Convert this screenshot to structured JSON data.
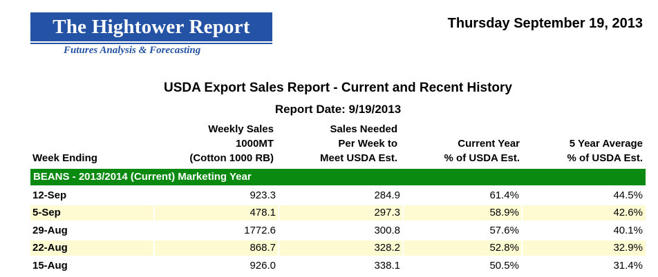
{
  "logo": {
    "title": "The Hightower Report",
    "subtitle": "Futures Analysis & Forecasting"
  },
  "date": "Thursday September 19, 2013",
  "report": {
    "title": "USDA Export Sales Report - Current and Recent History",
    "report_date": "Report Date: 9/19/2013"
  },
  "headers": {
    "week_ending": "Week Ending",
    "weekly_sales": [
      "Weekly Sales",
      "1000MT",
      "(Cotton 1000 RB)"
    ],
    "sales_needed": [
      "Sales Needed",
      "Per Week to",
      "Meet USDA Est."
    ],
    "current_year": [
      "Current Year",
      "% of USDA Est."
    ],
    "five_year": [
      "5 Year Average",
      "% of USDA Est."
    ]
  },
  "section": "BEANS - 2013/2014 (Current) Marketing Year",
  "rows": [
    {
      "week": "12-Sep",
      "weekly_sales": "923.3",
      "sales_needed": "284.9",
      "current_pct": "61.4%",
      "avg_pct": "44.5%"
    },
    {
      "week": "5-Sep",
      "weekly_sales": "478.1",
      "sales_needed": "297.3",
      "current_pct": "58.9%",
      "avg_pct": "42.6%"
    },
    {
      "week": "29-Aug",
      "weekly_sales": "1772.6",
      "sales_needed": "300.8",
      "current_pct": "57.6%",
      "avg_pct": "40.1%"
    },
    {
      "week": "22-Aug",
      "weekly_sales": "868.7",
      "sales_needed": "328.2",
      "current_pct": "52.8%",
      "avg_pct": "32.9%"
    },
    {
      "week": "15-Aug",
      "weekly_sales": "926.0",
      "sales_needed": "338.1",
      "current_pct": "50.5%",
      "avg_pct": "31.4%"
    }
  ],
  "colors": {
    "brand_blue": "#2452a4",
    "section_green": "#0a8a10",
    "alt_row": "#fefbd3"
  }
}
